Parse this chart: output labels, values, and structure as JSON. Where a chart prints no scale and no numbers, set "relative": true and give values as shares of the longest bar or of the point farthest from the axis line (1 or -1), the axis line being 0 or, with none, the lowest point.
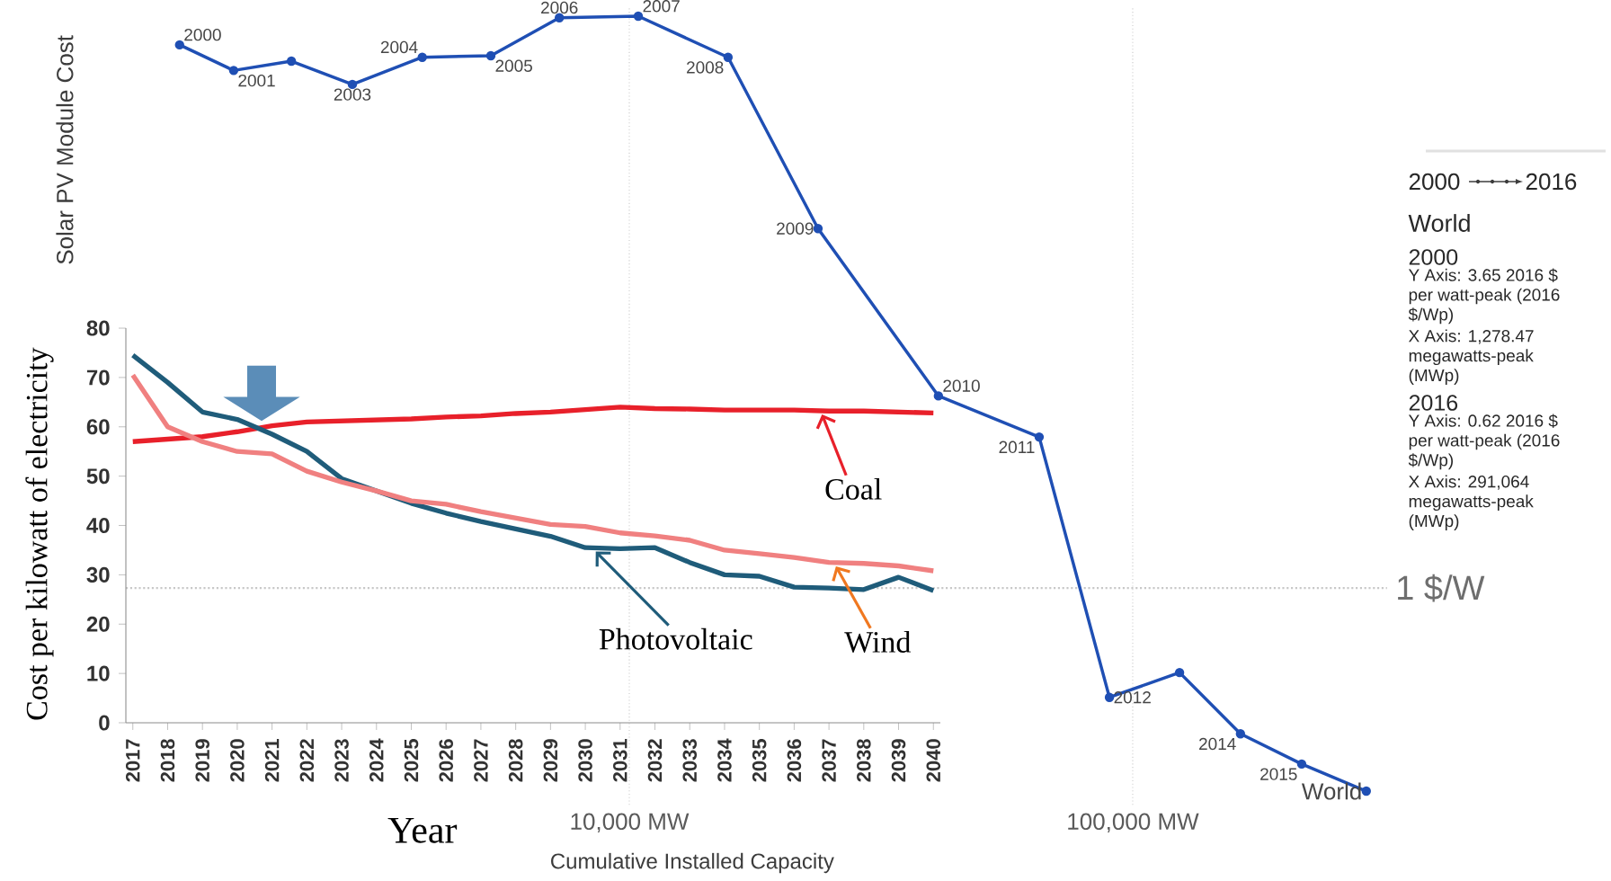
{
  "chart_data": [
    {
      "type": "line",
      "xlabel": "Cumulative Installed Capacity",
      "ylabel": "Solar PV Module Cost",
      "color": "#1f4fb4",
      "marker": "circle",
      "log": "x",
      "grid": "x",
      "relative": true,
      "x": [
        1278.47,
        1637,
        2132,
        2818,
        3880,
        5309,
        7263,
        10420,
        15710,
        23710,
        41120,
        65200,
        89900,
        123900,
        163700,
        216600,
        291064
      ],
      "values": [
        0.963,
        0.93,
        0.942,
        0.912,
        0.947,
        0.949,
        0.998,
        1,
        0.947,
        0.726,
        0.51,
        0.457,
        0.121,
        0.153,
        0.074,
        0.035,
        0
      ],
      "xlim": [
        1000,
        320000
      ],
      "xticks": [
        {
          "value": 10000,
          "label": "10,000 MW"
        },
        {
          "value": 100000,
          "label": "100,000 MW"
        }
      ],
      "ref_lines": [
        {
          "axis": "y",
          "value": 0.262,
          "label": "1 $/W",
          "color": "#c8c8c8",
          "line_style": "dotted"
        }
      ],
      "annotations": [
        {
          "text": "2000",
          "x": 1278.47,
          "y": 0.963
        },
        {
          "text": "2001",
          "x": 1637,
          "y": 0.93
        },
        {
          "text": "2003",
          "x": 2818,
          "y": 0.912
        },
        {
          "text": "2004",
          "x": 3880,
          "y": 0.947
        },
        {
          "text": "2005",
          "x": 5309,
          "y": 0.949
        },
        {
          "text": "2006",
          "x": 7263,
          "y": 0.998
        },
        {
          "text": "2007",
          "x": 10420,
          "y": 1
        },
        {
          "text": "2008",
          "x": 15710,
          "y": 0.947
        },
        {
          "text": "2009",
          "x": 23710,
          "y": 0.726
        },
        {
          "text": "2010",
          "x": 41120,
          "y": 0.51
        },
        {
          "text": "2011",
          "x": 65200,
          "y": 0.457
        },
        {
          "text": "2012",
          "x": 89900,
          "y": 0.121
        },
        {
          "text": "2014",
          "x": 163700,
          "y": 0.074
        },
        {
          "text": "2015",
          "x": 216600,
          "y": 0.035
        },
        {
          "text": "World",
          "x": 291064,
          "y": 0
        },
        "2000",
        "2016",
        "World",
        "2000",
        "Y Axis: 3.65 2016 $ per watt-peak (2016 $/Wp)",
        "X Axis: 1,278.47 megawatts-peak (MWp)",
        "2016",
        "Y Axis: 0.62 2016 $ per watt-peak (2016 $/Wp)",
        "X Axis: 291,064 megawatts-peak (MWp)"
      ]
    },
    {
      "type": "line",
      "xlabel": "Year",
      "ylabel": "Cost per kilowatt of electricity",
      "categories": [
        "2017",
        "2018",
        "2019",
        "2020",
        "2021",
        "2022",
        "2023",
        "2024",
        "2025",
        "2026",
        "2027",
        "2028",
        "2029",
        "2030",
        "2031",
        "2032",
        "2033",
        "2034",
        "2035",
        "2036",
        "2037",
        "2038",
        "2039",
        "2040"
      ],
      "ylim": [
        0,
        80
      ],
      "yticks": [
        0,
        10,
        20,
        30,
        40,
        50,
        60,
        70,
        80
      ],
      "legend": "bottom right",
      "series": [
        {
          "name": "Coal",
          "color": "#e8202a",
          "values": [
            57,
            57.5,
            58,
            59,
            60.2,
            61,
            61.2,
            61.4,
            61.6,
            62,
            62.2,
            62.7,
            63,
            63.5,
            64,
            63.7,
            63.6,
            63.4,
            63.4,
            63.4,
            63.2,
            63.2,
            63,
            62.8
          ]
        },
        {
          "name": "Photovoltaic",
          "color": "#1f5c7a",
          "values": [
            74.5,
            69,
            63,
            61.5,
            58.5,
            55,
            49.5,
            47,
            44.5,
            42.5,
            40.8,
            39.3,
            37.8,
            35.5,
            35.3,
            35.5,
            32.5,
            30,
            29.7,
            27.5,
            27.3,
            27,
            29.5,
            26.8
          ]
        },
        {
          "name": "Wind",
          "color": "#f08080",
          "values": [
            70.5,
            60,
            57,
            55,
            54.5,
            51,
            48.8,
            47,
            45,
            44.3,
            42.8,
            41.5,
            40.2,
            39.8,
            38.5,
            37.9,
            37,
            35,
            34.3,
            33.5,
            32.5,
            32.3,
            31.8,
            30.8
          ]
        }
      ]
    }
  ]
}
